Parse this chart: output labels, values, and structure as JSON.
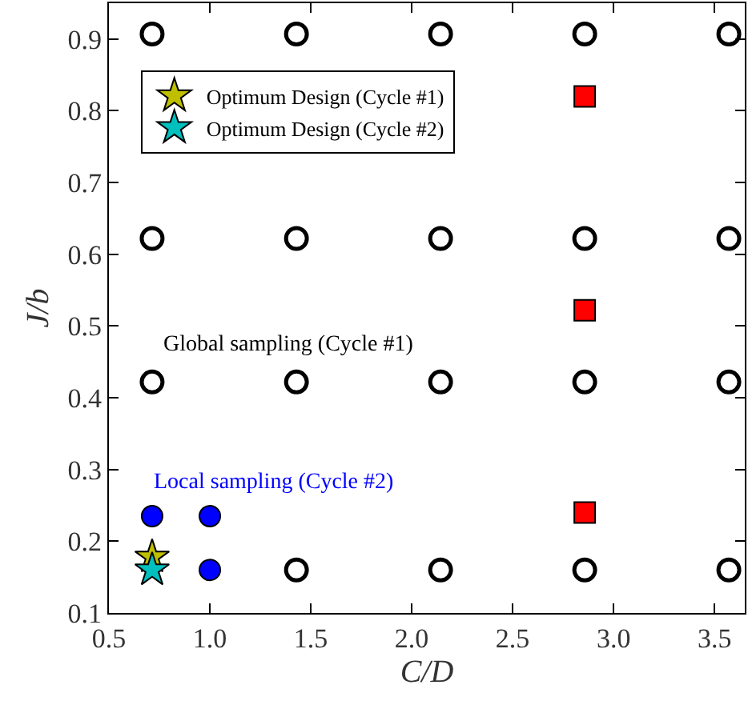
{
  "chart_data": {
    "type": "scatter",
    "xlabel": "C/D",
    "ylabel": "J/b",
    "xlim": [
      0.5,
      3.65
    ],
    "xticks": [
      {
        "value": 0.5,
        "label": "0.5"
      },
      {
        "value": 1,
        "label": "1.0"
      },
      {
        "value": 1.5,
        "label": "1.5"
      },
      {
        "value": 2,
        "label": "2.0"
      },
      {
        "value": 2.5,
        "label": "2.5"
      },
      {
        "value": 3,
        "label": "3.0"
      },
      {
        "value": 3.5,
        "label": "3.5"
      }
    ],
    "ylim": [
      0.1,
      0.95
    ],
    "yticks": [
      0.1,
      0.2,
      0.3,
      0.4,
      0.5,
      0.6,
      0.7,
      0.8,
      0.9
    ],
    "grid": false,
    "legend": "top left",
    "annotations": [
      "Global sampling (Cycle #1)",
      "Local sampling (Cycle #2)"
    ],
    "series": [
      {
        "marker": "circle",
        "color": "#ffffff",
        "x": [
          0.714,
          1.429,
          2.143,
          2.857,
          3.571,
          0.714,
          1.429,
          2.143,
          2.857,
          3.571,
          0.714,
          1.429,
          2.143,
          2.857,
          3.571,
          1.429,
          2.143,
          2.857,
          3.571
        ],
        "values": [
          0.907,
          0.907,
          0.907,
          0.907,
          0.907,
          0.622,
          0.622,
          0.622,
          0.622,
          0.622,
          0.422,
          0.422,
          0.422,
          0.422,
          0.422,
          0.16,
          0.16,
          0.16,
          0.16
        ]
      },
      {
        "marker": "square",
        "color": "#ff0000",
        "x": [
          2.857,
          2.857,
          2.857
        ],
        "values": [
          0.82,
          0.522,
          0.24
        ]
      },
      {
        "marker": "circle",
        "color": "#0000ff",
        "x": [
          0.714,
          1.0,
          1.0
        ],
        "values": [
          0.235,
          0.235,
          0.16
        ]
      },
      {
        "name": "Optimum Design (Cycle #1)",
        "marker": "star",
        "color": "#bfbf00",
        "x": [
          0.714
        ],
        "values": [
          0.178
        ]
      },
      {
        "name": "Optimum Design (Cycle #2)",
        "marker": "star",
        "color": "#00bfbf",
        "x": [
          0.714
        ],
        "values": [
          0.16
        ]
      }
    ]
  }
}
